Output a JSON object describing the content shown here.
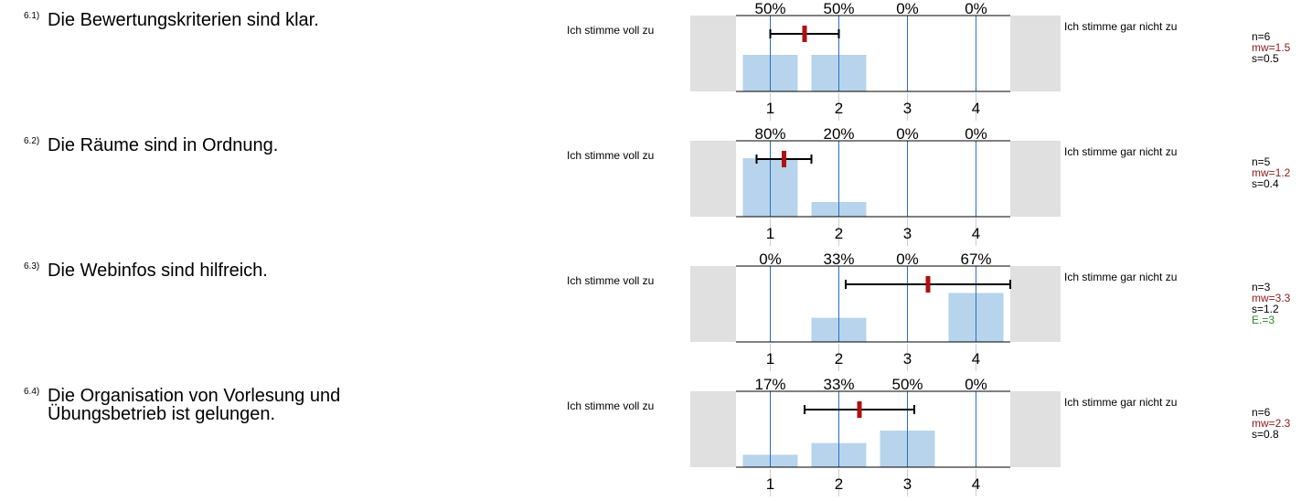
{
  "colors": {
    "bar": "#b7d4ec",
    "gridline": "#2a6fbf",
    "mean": "#b01010",
    "errorbar": "#000000",
    "side_box": "#e0e0e0",
    "mw_text": "#8b1a1a",
    "e_text": "#2a8a2a"
  },
  "chart_data": [
    {
      "type": "bar",
      "number": "6.1)",
      "question": "Die Bewertungskriterien sind klar.",
      "left_label": "Ich stimme voll zu",
      "right_label": "Ich stimme gar nicht zu",
      "categories": [
        "1",
        "2",
        "3",
        "4"
      ],
      "percent_labels": [
        "50%",
        "50%",
        "0%",
        "0%"
      ],
      "values": [
        50,
        50,
        0,
        0
      ],
      "mean": 1.5,
      "sd": 0.5,
      "stats": {
        "n": "n=6",
        "mw": "mw=1.5",
        "s": "s=0.5"
      }
    },
    {
      "type": "bar",
      "number": "6.2)",
      "question": "Die Räume sind in Ordnung.",
      "left_label": "Ich stimme voll zu",
      "right_label": "Ich stimme gar nicht zu",
      "categories": [
        "1",
        "2",
        "3",
        "4"
      ],
      "percent_labels": [
        "80%",
        "20%",
        "0%",
        "0%"
      ],
      "values": [
        80,
        20,
        0,
        0
      ],
      "mean": 1.2,
      "sd": 0.4,
      "stats": {
        "n": "n=5",
        "mw": "mw=1.2",
        "s": "s=0.4"
      }
    },
    {
      "type": "bar",
      "number": "6.3)",
      "question": "Die Webinfos sind hilfreich.",
      "left_label": "Ich stimme voll zu",
      "right_label": "Ich stimme gar nicht zu",
      "categories": [
        "1",
        "2",
        "3",
        "4"
      ],
      "percent_labels": [
        "0%",
        "33%",
        "0%",
        "67%"
      ],
      "values": [
        0,
        33,
        0,
        67
      ],
      "mean": 3.3,
      "sd": 1.2,
      "stats": {
        "n": "n=3",
        "mw": "mw=3.3",
        "s": "s=1.2",
        "e": "E.=3"
      }
    },
    {
      "type": "bar",
      "number": "6.4)",
      "question": "Die Organisation von Vorlesung und Übungsbetrieb ist gelungen.",
      "left_label": "Ich stimme voll zu",
      "right_label": "Ich stimme gar nicht zu",
      "categories": [
        "1",
        "2",
        "3",
        "4"
      ],
      "percent_labels": [
        "17%",
        "33%",
        "50%",
        "0%"
      ],
      "values": [
        17,
        33,
        50,
        0
      ],
      "mean": 2.3,
      "sd": 0.8,
      "stats": {
        "n": "n=6",
        "mw": "mw=2.3",
        "s": "s=0.8"
      }
    }
  ]
}
